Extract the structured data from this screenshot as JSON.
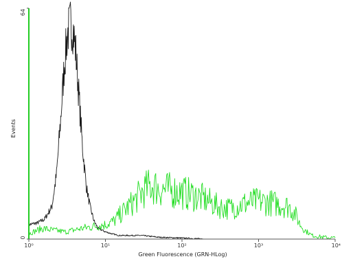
{
  "chart_data": {
    "type": "line",
    "title": "",
    "xlabel": "Green Fluorescence (GRN-HLog)",
    "ylabel": "Events",
    "x_scale": "log",
    "x_range": [
      1,
      10000
    ],
    "y_range": [
      0,
      64
    ],
    "x_tick_labels": [
      "10⁰",
      "10¹",
      "10²",
      "10³",
      "10⁴"
    ],
    "x_tick_values": [
      1,
      10,
      100,
      1000,
      10000
    ],
    "y_tick_labels": [
      "0",
      "64"
    ],
    "y_tick_values": [
      0,
      64
    ],
    "grid": false,
    "legend": "none",
    "series": [
      {
        "color": "#1a1a1a",
        "x": [
          1.0,
          1.3,
          1.6,
          2.0,
          2.3,
          2.6,
          2.9,
          3.2,
          3.5,
          3.8,
          4.1,
          4.5,
          5.0,
          5.6,
          6.3,
          7.1,
          8.0,
          9.0,
          10.0,
          12.0,
          15.0,
          20.0,
          30.0,
          50.0,
          100.0,
          200.0
        ],
        "y": [
          4.0,
          4.5,
          5.5,
          9.0,
          18.0,
          33.0,
          48.0,
          57.0,
          60.0,
          58.0,
          52.0,
          40.0,
          26.0,
          15.0,
          9.0,
          5.0,
          3.0,
          2.5,
          2.0,
          1.5,
          1.0,
          1.0,
          1.0,
          0.5,
          0.3,
          0.0
        ]
      },
      {
        "color": "#22dd22",
        "x": [
          1.0,
          1.5,
          2.0,
          3.0,
          5.0,
          7.0,
          10.0,
          13.0,
          16.0,
          20.0,
          25.0,
          30.0,
          40.0,
          50.0,
          70.0,
          100.0,
          150.0,
          200.0,
          300.0,
          400.0,
          500.0,
          700.0,
          1000.0,
          1500.0,
          2000.0,
          2500.0,
          3000.0,
          3500.0,
          4000.0,
          5000.0,
          7000.0,
          10000.0
        ],
        "y": [
          1.5,
          3.0,
          2.5,
          2.0,
          3.0,
          3.5,
          4.0,
          5.0,
          7.0,
          9.0,
          11.0,
          13.0,
          15.0,
          14.0,
          13.5,
          13.0,
          12.0,
          11.0,
          9.0,
          8.5,
          9.0,
          10.0,
          10.5,
          10.0,
          9.5,
          9.0,
          7.0,
          4.0,
          2.5,
          1.0,
          0.5,
          0.3
        ]
      }
    ]
  }
}
